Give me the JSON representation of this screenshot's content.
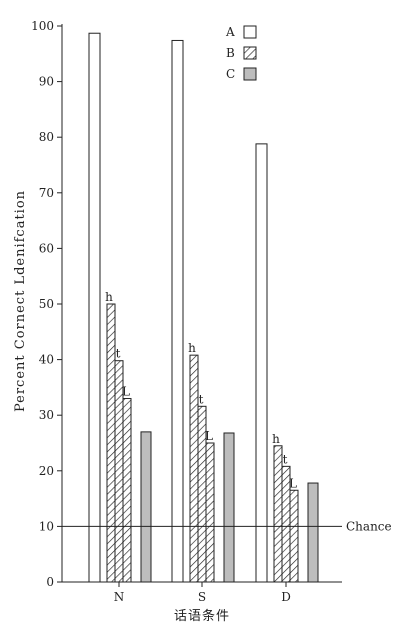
{
  "chart_data": {
    "type": "bar",
    "categories": [
      "N",
      "S",
      "D"
    ],
    "series": [
      {
        "name": "A",
        "fill": "#ffffff",
        "pattern": "none",
        "values": [
          98.7,
          97.4,
          78.8
        ]
      },
      {
        "name": "B",
        "fill": "#ffffff",
        "pattern": "hatch",
        "grouped_values": [
          [
            {
              "label": "h",
              "value": 50.0
            },
            {
              "label": "t",
              "value": 39.8
            },
            {
              "label": "L",
              "value": 33.0
            }
          ],
          [
            {
              "label": "h",
              "value": 40.8
            },
            {
              "label": "t",
              "value": 31.6
            },
            {
              "label": "L",
              "value": 25.0
            }
          ],
          [
            {
              "label": "h",
              "value": 24.5
            },
            {
              "label": "t",
              "value": 20.8
            },
            {
              "label": "L",
              "value": 16.5
            }
          ]
        ]
      },
      {
        "name": "C",
        "fill": "#bdbdbd",
        "pattern": "none",
        "values": [
          27.0,
          26.8,
          17.8
        ]
      }
    ],
    "ylabel": "Percent Cornect Ldenifcation",
    "xlabel": "话语条件",
    "ylim": [
      0,
      100
    ],
    "yticks": [
      0,
      10,
      20,
      30,
      40,
      50,
      60,
      70,
      80,
      90,
      100
    ],
    "reference_line": {
      "value": 10,
      "label": "Chance"
    },
    "legend": {
      "placement": "top-right",
      "entries": [
        "A",
        "B",
        "C"
      ]
    },
    "grid": false,
    "colors": {
      "axis": "#222222",
      "bar_stroke": "#222222",
      "gray_fill": "#bdbdbd"
    }
  }
}
